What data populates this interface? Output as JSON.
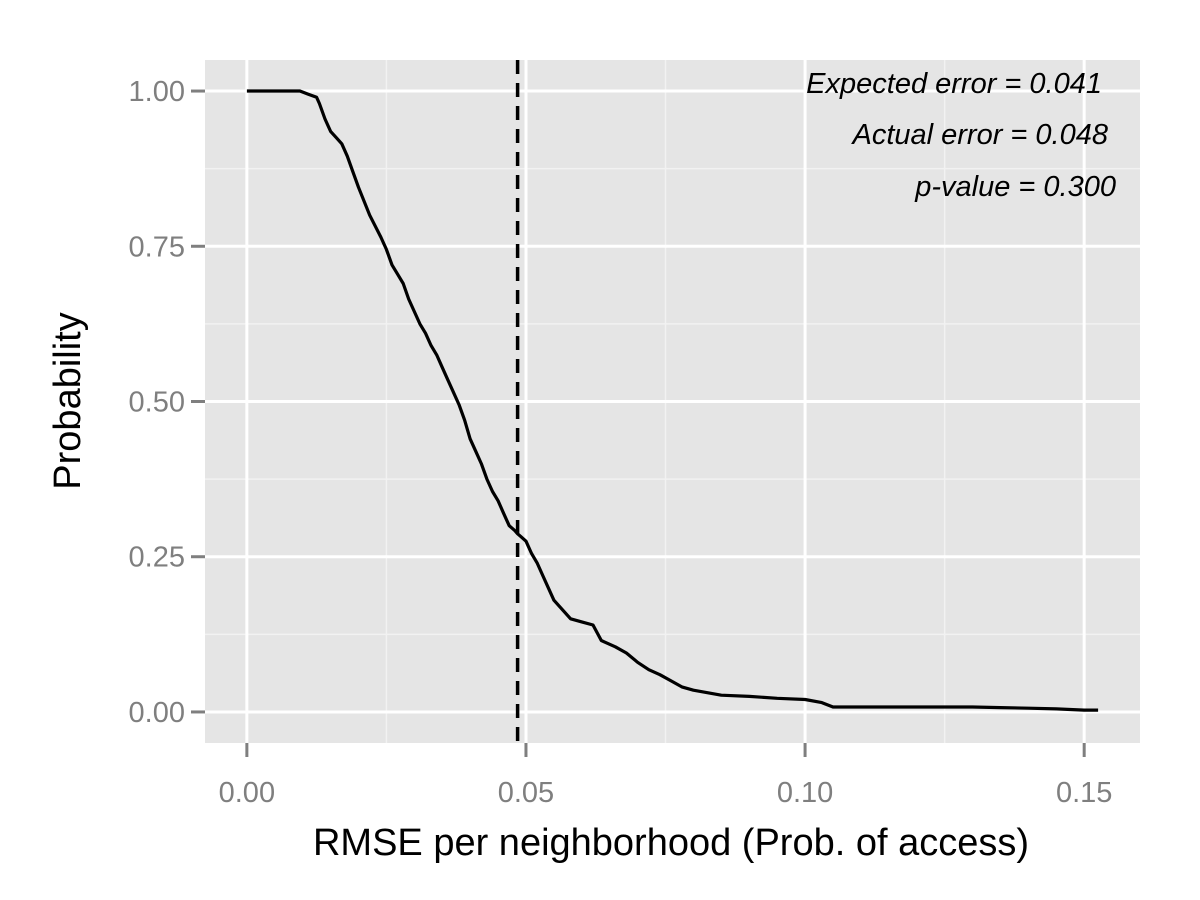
{
  "chart_data": {
    "type": "line",
    "xlabel": "RMSE per neighborhood (Prob. of access)",
    "ylabel": "Probability",
    "xlim": [
      -0.0075,
      0.16
    ],
    "ylim": [
      -0.05,
      1.05
    ],
    "x_ticks": [
      0.0,
      0.05,
      0.1,
      0.15
    ],
    "x_tick_labels": [
      "0.00",
      "0.05",
      "0.10",
      "0.15"
    ],
    "y_ticks": [
      0.0,
      0.25,
      0.5,
      0.75,
      1.0
    ],
    "y_tick_labels": [
      "0.00",
      "0.25",
      "0.50",
      "0.75",
      "1.00"
    ],
    "grid": true,
    "panel_background": "#e5e5e5",
    "grid_color": "#ffffff",
    "line_color": "#000000",
    "series": [
      {
        "x": [
          0.0,
          0.0095,
          0.011,
          0.0125,
          0.013,
          0.014,
          0.015,
          0.016,
          0.017,
          0.018,
          0.019,
          0.02,
          0.022,
          0.024,
          0.025,
          0.026,
          0.027,
          0.028,
          0.029,
          0.03,
          0.031,
          0.032,
          0.033,
          0.034,
          0.035,
          0.036,
          0.037,
          0.038,
          0.039,
          0.04,
          0.041,
          0.042,
          0.043,
          0.044,
          0.045,
          0.046,
          0.047,
          0.048,
          0.0485,
          0.049,
          0.05,
          0.051,
          0.052,
          0.053,
          0.054,
          0.055,
          0.056,
          0.058,
          0.06,
          0.062,
          0.0635,
          0.064,
          0.066,
          0.068,
          0.07,
          0.072,
          0.074,
          0.076,
          0.078,
          0.08,
          0.085,
          0.09,
          0.095,
          0.1,
          0.103,
          0.105,
          0.11,
          0.12,
          0.13,
          0.135,
          0.14,
          0.145,
          0.15,
          0.1525
        ],
        "y": [
          1.0,
          1.0,
          0.995,
          0.99,
          0.98,
          0.955,
          0.935,
          0.925,
          0.915,
          0.895,
          0.87,
          0.845,
          0.8,
          0.765,
          0.745,
          0.72,
          0.705,
          0.69,
          0.665,
          0.645,
          0.625,
          0.61,
          0.59,
          0.575,
          0.555,
          0.535,
          0.515,
          0.495,
          0.47,
          0.44,
          0.42,
          0.4,
          0.375,
          0.355,
          0.34,
          0.32,
          0.3,
          0.292,
          0.287,
          0.283,
          0.275,
          0.255,
          0.24,
          0.22,
          0.2,
          0.18,
          0.17,
          0.15,
          0.145,
          0.14,
          0.115,
          0.113,
          0.105,
          0.095,
          0.08,
          0.068,
          0.06,
          0.05,
          0.04,
          0.035,
          0.027,
          0.025,
          0.022,
          0.02,
          0.015,
          0.008,
          0.008,
          0.008,
          0.008,
          0.007,
          0.006,
          0.005,
          0.003,
          0.003
        ]
      }
    ],
    "reference_line": {
      "x": 0.0485,
      "style": "dashed"
    },
    "annotations": [
      "Expected error = 0.041",
      "Actual error = 0.048",
      "p-value = 0.300"
    ]
  }
}
